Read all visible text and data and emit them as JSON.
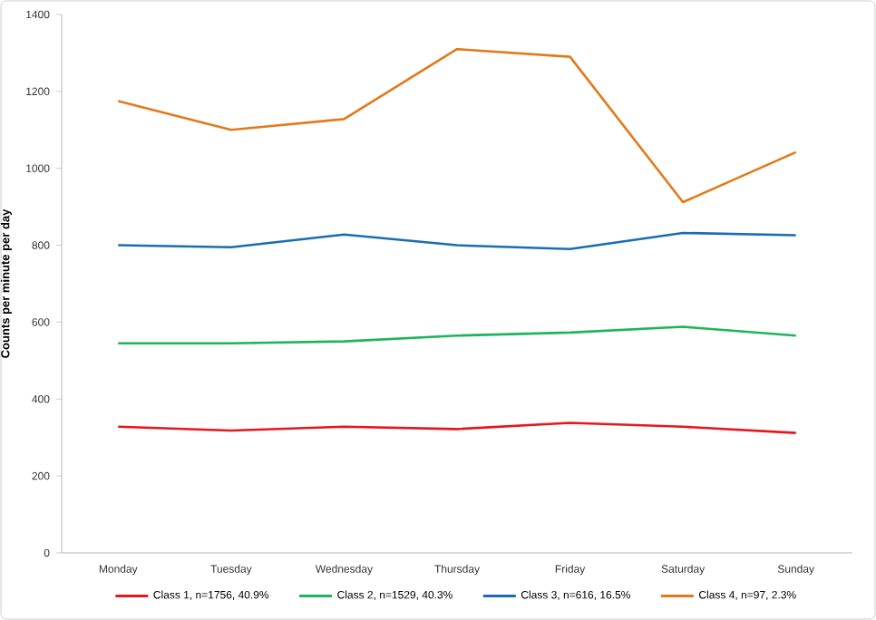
{
  "chart_data": {
    "type": "line",
    "ylabel": "Counts per minute per day",
    "categories": [
      "Monday",
      "Tuesday",
      "Wednesday",
      "Thursday",
      "Friday",
      "Saturday",
      "Sunday"
    ],
    "series": [
      {
        "name": "Class 1, n=1756, 40.9%",
        "color": "#e8161d",
        "values": [
          328,
          318,
          328,
          322,
          338,
          328,
          312
        ]
      },
      {
        "name": "Class 2, n=1529, 40.3%",
        "color": "#1db45a",
        "values": [
          545,
          545,
          550,
          565,
          573,
          588,
          565
        ]
      },
      {
        "name": "Class 3, n=616, 16.5%",
        "color": "#1a6db3",
        "values": [
          800,
          795,
          828,
          800,
          790,
          832,
          826
        ]
      },
      {
        "name": "Class 4, n=97, 2.3%",
        "color": "#e27a1b",
        "values": [
          1175,
          1100,
          1128,
          1310,
          1290,
          912,
          1042
        ]
      }
    ],
    "ylim": [
      0,
      1400
    ],
    "yticks": [
      0,
      200,
      400,
      600,
      800,
      1000,
      1200,
      1400
    ],
    "grid": false,
    "legend": "bottom",
    "marker": "none",
    "line_style": "solid"
  }
}
